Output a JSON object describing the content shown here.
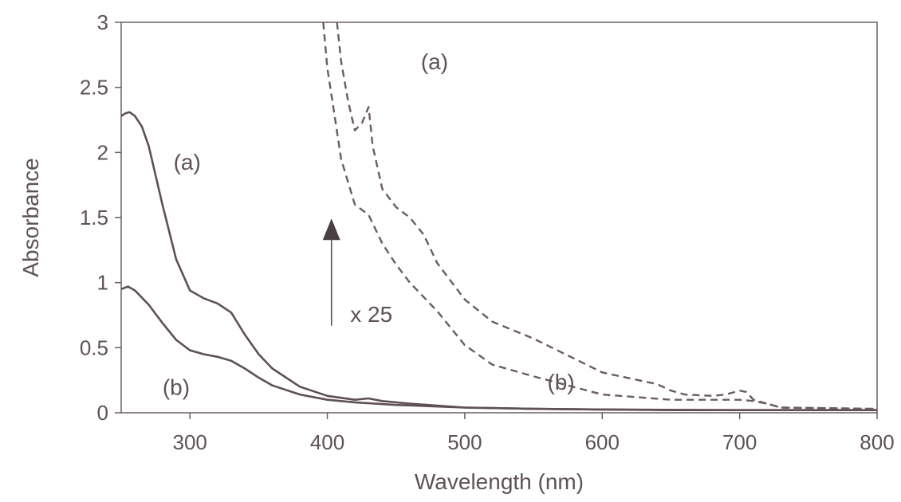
{
  "chart_data": {
    "type": "line",
    "title": "",
    "xlabel": "Wavelength (nm)",
    "ylabel": "Absorbance",
    "xlim": [
      250,
      800
    ],
    "ylim": [
      0,
      3
    ],
    "xticks": [
      300,
      400,
      500,
      600,
      700,
      800
    ],
    "yticks": [
      0,
      0.5,
      1,
      1.5,
      2,
      2.5,
      3
    ],
    "ytick_labels": [
      "0",
      "0.5",
      "1",
      "1.5",
      "2",
      "2.5",
      "3"
    ],
    "grid": false,
    "series": [
      {
        "style": "solid",
        "x": [
          250,
          253,
          256,
          260,
          265,
          270,
          280,
          290,
          300,
          310,
          320,
          330,
          340,
          350,
          360,
          380,
          400,
          420,
          430,
          435,
          440,
          460,
          480,
          500,
          550,
          600,
          650,
          700,
          750,
          800
        ],
        "y": [
          2.28,
          2.3,
          2.31,
          2.28,
          2.2,
          2.05,
          1.6,
          1.18,
          0.94,
          0.88,
          0.84,
          0.77,
          0.6,
          0.45,
          0.34,
          0.2,
          0.13,
          0.1,
          0.11,
          0.1,
          0.09,
          0.07,
          0.055,
          0.04,
          0.03,
          0.025,
          0.02,
          0.02,
          0.02,
          0.02
        ]
      },
      {
        "style": "solid",
        "x": [
          250,
          255,
          260,
          270,
          280,
          290,
          300,
          310,
          320,
          330,
          340,
          350,
          360,
          380,
          400,
          420,
          450,
          500,
          550,
          600,
          700,
          800
        ],
        "y": [
          0.95,
          0.97,
          0.94,
          0.83,
          0.69,
          0.56,
          0.48,
          0.45,
          0.43,
          0.4,
          0.34,
          0.27,
          0.21,
          0.14,
          0.1,
          0.08,
          0.06,
          0.04,
          0.03,
          0.025,
          0.02,
          0.02
        ]
      },
      {
        "style": "dashed",
        "x": [
          407,
          410,
          415,
          420,
          425,
          430,
          433,
          440,
          450,
          460,
          470,
          480,
          500,
          520,
          550,
          600,
          640,
          650,
          660,
          680,
          690,
          700,
          705,
          710,
          720,
          730,
          800
        ],
        "y": [
          3.0,
          2.7,
          2.4,
          2.17,
          2.22,
          2.35,
          2.05,
          1.72,
          1.58,
          1.5,
          1.37,
          1.15,
          0.87,
          0.7,
          0.57,
          0.31,
          0.22,
          0.17,
          0.14,
          0.13,
          0.14,
          0.17,
          0.16,
          0.1,
          0.07,
          0.04,
          0.03
        ]
      },
      {
        "style": "dashed",
        "x": [
          397,
          400,
          405,
          410,
          420,
          430,
          440,
          450,
          460,
          480,
          500,
          520,
          550,
          600,
          650,
          700,
          710,
          720,
          730,
          800
        ],
        "y": [
          3.0,
          2.65,
          2.3,
          1.95,
          1.6,
          1.52,
          1.3,
          1.14,
          1.0,
          0.78,
          0.52,
          0.37,
          0.28,
          0.14,
          0.1,
          0.1,
          0.09,
          0.07,
          0.04,
          0.03
        ]
      }
    ],
    "annotations": [
      {
        "text": "(a)",
        "x": 478,
        "y": 2.7
      },
      {
        "text": "(a)",
        "x": 298,
        "y": 1.93
      },
      {
        "text": "(b)",
        "x": 290,
        "y": 0.2
      },
      {
        "text": "(b)",
        "x": 570,
        "y": 0.24
      },
      {
        "text": "x 25",
        "x": 432,
        "y": 0.76
      }
    ],
    "arrow": {
      "x": 403,
      "y_from": 0.67,
      "y_to": 1.48
    }
  }
}
